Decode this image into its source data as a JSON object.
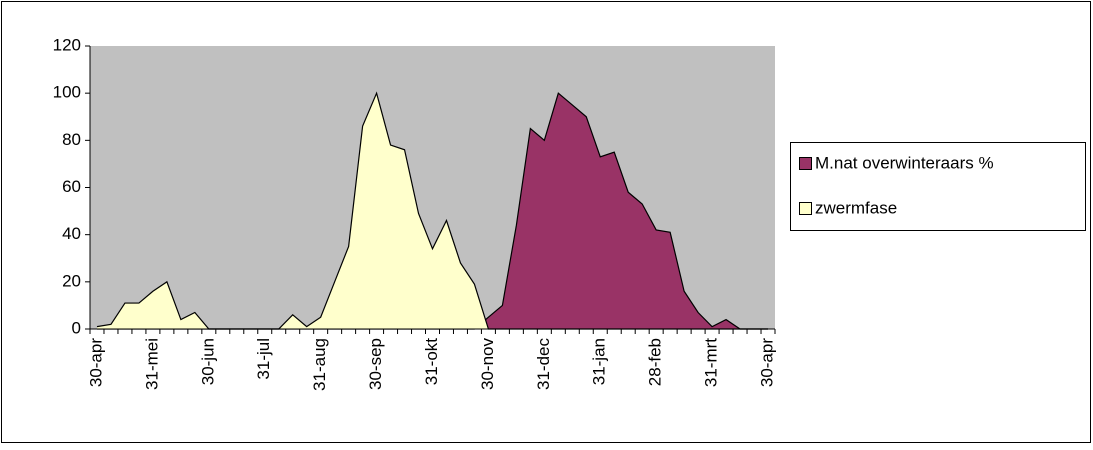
{
  "chart_data": {
    "type": "area",
    "categories": [
      "30-apr",
      null,
      null,
      null,
      "31-mei",
      null,
      null,
      null,
      "30-jun",
      null,
      null,
      null,
      "31-jul",
      null,
      null,
      null,
      "31-aug",
      null,
      null,
      null,
      "30-sep",
      null,
      null,
      null,
      "31-okt",
      null,
      null,
      null,
      "30-nov",
      null,
      null,
      null,
      "31-dec",
      null,
      null,
      null,
      "31-jan",
      null,
      null,
      null,
      "28-feb",
      null,
      null,
      null,
      "31-mrt",
      null,
      null,
      null,
      "30-apr"
    ],
    "series": [
      {
        "name": "M.nat overwinteraars %",
        "color": "#993366",
        "values": [
          0,
          0,
          0,
          0,
          0,
          0,
          0,
          0,
          0,
          0,
          0,
          0,
          0,
          0,
          0,
          0,
          0,
          0,
          0,
          0,
          0,
          0,
          0,
          0,
          0,
          0,
          0,
          0,
          5,
          10,
          44,
          85,
          80,
          100,
          95,
          90,
          73,
          75,
          58,
          53,
          42,
          41,
          16,
          7,
          1,
          4,
          0,
          0,
          0
        ]
      },
      {
        "name": "zwermfase",
        "color": "#ffffcc",
        "values": [
          1,
          2,
          11,
          11,
          16,
          20,
          4,
          7,
          0,
          0,
          0,
          0,
          0,
          0,
          6,
          1,
          5,
          20,
          35,
          86,
          100,
          78,
          76,
          49,
          34,
          46,
          28,
          19,
          0,
          0,
          0,
          0,
          0,
          0,
          0,
          0,
          0,
          0,
          0,
          0,
          0,
          0,
          0,
          0,
          0,
          0,
          0,
          0,
          0
        ]
      }
    ],
    "ylim": [
      0,
      120
    ],
    "yticks": [
      0,
      20,
      40,
      60,
      80,
      100,
      120
    ],
    "plot_background": "#c0c0c0",
    "legend": "right"
  }
}
